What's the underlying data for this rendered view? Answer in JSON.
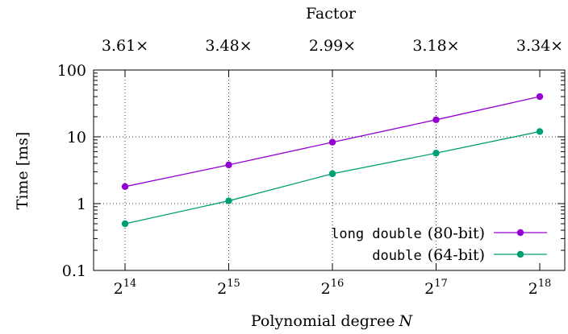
{
  "chart_data": {
    "type": "line",
    "title": "",
    "xlabel_prefix": "Polynomial degree",
    "xlabel_var": "N",
    "ylabel": "Time [ms]",
    "top_axis_label": "Factor",
    "x_base": "2",
    "x_exponents": [
      "14",
      "15",
      "16",
      "17",
      "18"
    ],
    "top_tick_labels": [
      "3.61×",
      "3.48×",
      "2.99×",
      "3.18×",
      "3.34×"
    ],
    "y_scale": "log",
    "ylim": [
      0.1,
      100
    ],
    "y_ticks": [
      0.1,
      1,
      10,
      100
    ],
    "y_tick_labels": [
      "0.1",
      "1",
      "10",
      "100"
    ],
    "grid": true,
    "legend_position": "bottom-right",
    "series": [
      {
        "name_code": "long double",
        "name_rest": "(80-bit)",
        "color": "#9400d3",
        "values": [
          1.8,
          3.8,
          8.3,
          18.0,
          40.0
        ]
      },
      {
        "name_code": "double",
        "name_rest": "(64-bit)",
        "color": "#009e73",
        "values": [
          0.5,
          1.1,
          2.8,
          5.7,
          12.0
        ]
      }
    ]
  }
}
